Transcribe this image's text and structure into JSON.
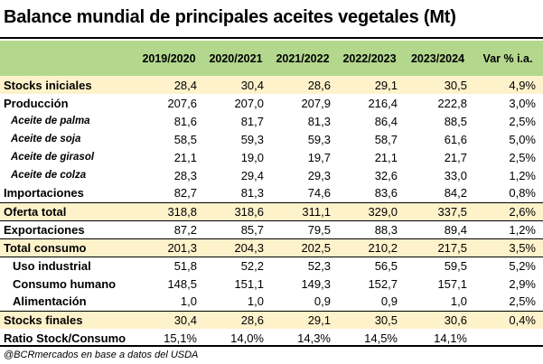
{
  "title": "Balance mundial de principales aceites vegetales (Mt)",
  "header": [
    "",
    "2019/2020",
    "2020/2021",
    "2021/2022",
    "2022/2023",
    "2023/2024",
    "Var % i.a."
  ],
  "rows": [
    {
      "label": "Stocks iniciales",
      "values": [
        "28,4",
        "30,4",
        "28,6",
        "29,1",
        "30,5",
        "4,9%"
      ]
    },
    {
      "label": "Producción",
      "values": [
        "207,6",
        "207,0",
        "207,9",
        "216,4",
        "222,8",
        "3,0%"
      ]
    },
    {
      "label": "Aceite de palma",
      "values": [
        "81,6",
        "81,7",
        "81,3",
        "86,4",
        "88,5",
        "2,5%"
      ]
    },
    {
      "label": "Aceite de soja",
      "values": [
        "58,5",
        "59,3",
        "59,3",
        "58,7",
        "61,6",
        "5,0%"
      ]
    },
    {
      "label": "Aceite de girasol",
      "values": [
        "21,1",
        "19,0",
        "19,7",
        "21,1",
        "21,7",
        "2,5%"
      ]
    },
    {
      "label": "Aceite de colza",
      "values": [
        "28,3",
        "29,4",
        "29,3",
        "32,6",
        "33,0",
        "1,2%"
      ]
    },
    {
      "label": "Importaciones",
      "values": [
        "82,7",
        "81,3",
        "74,6",
        "83,6",
        "84,2",
        "0,8%"
      ]
    },
    {
      "label": "Oferta total",
      "values": [
        "318,8",
        "318,6",
        "311,1",
        "329,0",
        "337,5",
        "2,6%"
      ]
    },
    {
      "label": "Exportaciones",
      "values": [
        "87,2",
        "85,7",
        "79,5",
        "88,3",
        "89,4",
        "1,2%"
      ]
    },
    {
      "label": "Total consumo",
      "values": [
        "201,3",
        "204,3",
        "202,5",
        "210,2",
        "217,5",
        "3,5%"
      ]
    },
    {
      "label": "Uso industrial",
      "values": [
        "51,8",
        "52,2",
        "52,3",
        "56,5",
        "59,5",
        "5,2%"
      ]
    },
    {
      "label": "Consumo humano",
      "values": [
        "148,5",
        "151,1",
        "149,3",
        "152,7",
        "157,1",
        "2,9%"
      ]
    },
    {
      "label": "Alimentación",
      "values": [
        "1,0",
        "1,0",
        "0,9",
        "0,9",
        "1,0",
        "2,5%"
      ]
    },
    {
      "label": "Stocks finales",
      "values": [
        "30,4",
        "28,6",
        "29,1",
        "30,5",
        "30,6",
        "0,4%"
      ]
    },
    {
      "label": "Ratio Stock/Consumo",
      "values": [
        "15,1%",
        "14,0%",
        "14,3%",
        "14,5%",
        "14,1%",
        ""
      ]
    }
  ],
  "source": "@BCRmercados en base a datos del USDA",
  "colors": {
    "header_bg": "#b4d78e",
    "highlight_bg": "#fef2cb"
  }
}
